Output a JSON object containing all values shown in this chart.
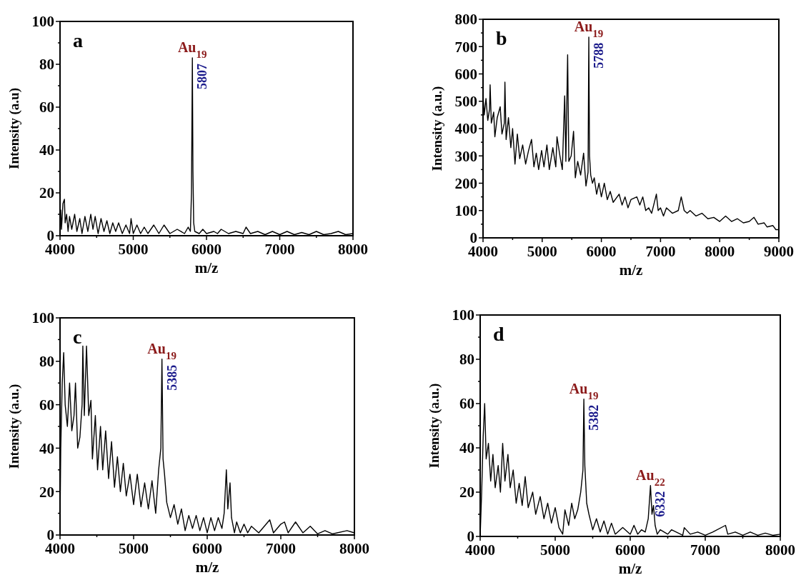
{
  "chart_data": [
    {
      "type": "line",
      "title": "a",
      "xlabel": "m/z",
      "ylabel": "Intensity (a.u)",
      "xlim": [
        4000,
        8000
      ],
      "ylim": [
        0,
        100
      ],
      "xticks": [
        4000,
        {
          "value": 4500,
          "label": null
        },
        5000,
        {
          "value": 5500,
          "label": null
        },
        6000,
        {
          "value": 6500,
          "label": null
        },
        7000,
        {
          "value": 7500,
          "label": null
        },
        8000
      ],
      "yticks": [
        0,
        {
          "value": 10,
          "label": null
        },
        20,
        {
          "value": 30,
          "label": null
        },
        40,
        {
          "value": 50,
          "label": null
        },
        60,
        {
          "value": 70,
          "label": null
        },
        80,
        {
          "value": 90,
          "label": null
        },
        100
      ],
      "grid": false,
      "annotations": [
        {
          "text": "Au$_{19}$",
          "x": 5807,
          "y": 83
        },
        {
          "text": "5807",
          "x": 5807,
          "y": 83
        }
      ],
      "series": [
        {
          "color": "#000000",
          "x": [
            4000,
            4010,
            4020,
            4040,
            4060,
            4070,
            4090,
            4110,
            4130,
            4160,
            4200,
            4230,
            4270,
            4300,
            4340,
            4380,
            4420,
            4450,
            4480,
            4520,
            4560,
            4600,
            4640,
            4680,
            4720,
            4760,
            4800,
            4850,
            4900,
            4950,
            4970,
            5000,
            5050,
            5100,
            5150,
            5200,
            5280,
            5350,
            5420,
            5500,
            5600,
            5700,
            5750,
            5780,
            5795,
            5807,
            5815,
            5825,
            5840,
            5900,
            5950,
            6000,
            6100,
            6150,
            6200,
            6300,
            6400,
            6500,
            6540,
            6600,
            6700,
            6800,
            6900,
            7000,
            7100,
            7200,
            7300,
            7400,
            7500,
            7600,
            7700,
            7800,
            7900,
            8000
          ],
          "values": [
            5,
            12,
            3,
            15,
            17,
            6,
            10,
            2,
            9,
            3,
            10,
            2,
            8,
            1,
            9,
            2,
            10,
            3,
            9,
            1,
            8,
            2,
            7,
            1,
            6,
            2,
            6,
            1,
            5,
            1,
            8,
            1,
            5,
            1,
            4,
            1,
            5,
            1,
            5,
            1,
            3,
            1,
            4,
            2,
            20,
            83,
            30,
            6,
            2,
            1,
            3,
            1,
            2,
            1,
            3,
            1,
            2,
            1,
            4,
            1,
            2,
            0.5,
            2,
            0.5,
            2,
            0.5,
            1.5,
            0.5,
            2,
            0.5,
            1,
            2,
            0.5,
            1
          ]
        }
      ]
    },
    {
      "type": "line",
      "title": "b",
      "xlabel": "m/z",
      "ylabel": "Intensity (a.u.)",
      "xlim": [
        4000,
        9000
      ],
      "ylim": [
        0,
        800
      ],
      "xticks": [
        4000,
        {
          "value": 4500,
          "label": null
        },
        5000,
        {
          "value": 5500,
          "label": null
        },
        6000,
        {
          "value": 6500,
          "label": null
        },
        7000,
        {
          "value": 7500,
          "label": null
        },
        8000,
        {
          "value": 8500,
          "label": null
        },
        9000
      ],
      "yticks": [
        0,
        {
          "value": 50,
          "label": null
        },
        100,
        {
          "value": 150,
          "label": null
        },
        200,
        {
          "value": 250,
          "label": null
        },
        300,
        {
          "value": 350,
          "label": null
        },
        400,
        {
          "value": 450,
          "label": null
        },
        500,
        {
          "value": 550,
          "label": null
        },
        600,
        {
          "value": 650,
          "label": null
        },
        700,
        {
          "value": 750,
          "label": null
        },
        800
      ],
      "grid": false,
      "annotations": [
        {
          "text": "Au$_{19}$",
          "x": 5788,
          "y": 735
        },
        {
          "text": "5788",
          "x": 5788,
          "y": 735
        }
      ],
      "series": [
        {
          "color": "#000000",
          "x": [
            4000,
            4020,
            4050,
            4080,
            4110,
            4120,
            4140,
            4180,
            4200,
            4240,
            4290,
            4320,
            4360,
            4370,
            4390,
            4430,
            4470,
            4500,
            4540,
            4580,
            4620,
            4670,
            4720,
            4770,
            4820,
            4860,
            4900,
            4940,
            4990,
            5030,
            5080,
            5120,
            5180,
            5230,
            5250,
            5300,
            5340,
            5380,
            5400,
            5430,
            5450,
            5490,
            5530,
            5560,
            5600,
            5650,
            5700,
            5740,
            5775,
            5788,
            5800,
            5820,
            5850,
            5880,
            5920,
            5960,
            6000,
            6050,
            6100,
            6150,
            6200,
            6300,
            6350,
            6400,
            6450,
            6500,
            6600,
            6650,
            6700,
            6750,
            6800,
            6850,
            6930,
            6960,
            7000,
            7050,
            7100,
            7200,
            7300,
            7350,
            7400,
            7450,
            7500,
            7600,
            7700,
            7800,
            7900,
            8000,
            8100,
            8200,
            8300,
            8400,
            8500,
            8580,
            8650,
            8750,
            8800,
            8900,
            8950,
            9000
          ],
          "values": [
            520,
            450,
            510,
            430,
            470,
            560,
            420,
            460,
            370,
            440,
            480,
            380,
            420,
            570,
            360,
            440,
            330,
            400,
            270,
            380,
            290,
            340,
            270,
            320,
            360,
            260,
            310,
            250,
            320,
            260,
            340,
            250,
            330,
            260,
            370,
            300,
            250,
            520,
            280,
            670,
            280,
            300,
            390,
            220,
            280,
            230,
            310,
            190,
            240,
            735,
            300,
            230,
            200,
            220,
            160,
            200,
            150,
            200,
            140,
            170,
            130,
            160,
            120,
            150,
            110,
            140,
            150,
            120,
            150,
            100,
            110,
            90,
            160,
            100,
            110,
            80,
            110,
            90,
            100,
            150,
            100,
            90,
            100,
            80,
            90,
            70,
            75,
            60,
            80,
            60,
            70,
            55,
            60,
            75,
            50,
            55,
            40,
            45,
            30,
            30
          ]
        }
      ]
    },
    {
      "type": "line",
      "title": "c",
      "xlabel": "m/z",
      "ylabel": "Intensity (a.u.)",
      "xlim": [
        4000,
        8000
      ],
      "ylim": [
        0,
        100
      ],
      "xticks": [
        4000,
        {
          "value": 4500,
          "label": null
        },
        5000,
        {
          "value": 5500,
          "label": null
        },
        6000,
        {
          "value": 6500,
          "label": null
        },
        7000,
        {
          "value": 7500,
          "label": null
        },
        8000
      ],
      "yticks": [
        0,
        {
          "value": 10,
          "label": null
        },
        20,
        {
          "value": 30,
          "label": null
        },
        40,
        {
          "value": 50,
          "label": null
        },
        60,
        {
          "value": 70,
          "label": null
        },
        80,
        {
          "value": 90,
          "label": null
        },
        100
      ],
      "grid": false,
      "annotations": [
        {
          "text": "Au$_{19}$",
          "x": 5385,
          "y": 81
        },
        {
          "text": "5385",
          "x": 5385,
          "y": 81
        }
      ],
      "series": [
        {
          "color": "#000000",
          "x": [
            4000,
            4010,
            4030,
            4050,
            4070,
            4100,
            4130,
            4160,
            4190,
            4210,
            4240,
            4270,
            4300,
            4310,
            4330,
            4360,
            4390,
            4420,
            4440,
            4480,
            4510,
            4550,
            4580,
            4620,
            4660,
            4700,
            4740,
            4780,
            4820,
            4860,
            4900,
            4950,
            5000,
            5050,
            5100,
            5150,
            5200,
            5250,
            5300,
            5340,
            5370,
            5385,
            5400,
            5420,
            5450,
            5500,
            5550,
            5600,
            5650,
            5700,
            5750,
            5800,
            5850,
            5900,
            5950,
            6000,
            6050,
            6100,
            6150,
            6200,
            6230,
            6260,
            6280,
            6310,
            6330,
            6370,
            6400,
            6450,
            6500,
            6550,
            6600,
            6700,
            6850,
            6900,
            7000,
            7050,
            7100,
            7200,
            7300,
            7400,
            7500,
            7600,
            7700,
            7900,
            8000
          ],
          "values": [
            5,
            40,
            70,
            84,
            60,
            50,
            70,
            48,
            55,
            70,
            40,
            45,
            60,
            87,
            55,
            87,
            55,
            62,
            35,
            55,
            30,
            50,
            30,
            48,
            26,
            43,
            22,
            36,
            20,
            33,
            18,
            28,
            14,
            28,
            13,
            24,
            12,
            25,
            10,
            30,
            40,
            81,
            35,
            28,
            15,
            8,
            14,
            5,
            12,
            2,
            9,
            3,
            9,
            2,
            8,
            1,
            8,
            2,
            8,
            3,
            10,
            30,
            12,
            24,
            8,
            1,
            6,
            1,
            5,
            1,
            4,
            1,
            7,
            1,
            5,
            6,
            1,
            6,
            1,
            4,
            0.5,
            2,
            0.5,
            2,
            1
          ]
        }
      ]
    },
    {
      "type": "line",
      "title": "d",
      "xlabel": "m/z",
      "ylabel": "Intensity (a.u.)",
      "xlim": [
        4000,
        8000
      ],
      "ylim": [
        0,
        100
      ],
      "xticks": [
        4000,
        {
          "value": 4500,
          "label": null
        },
        5000,
        {
          "value": 5500,
          "label": null
        },
        6000,
        {
          "value": 6500,
          "label": null
        },
        7000,
        {
          "value": 7500,
          "label": null
        },
        8000
      ],
      "yticks": [
        0,
        {
          "value": 10,
          "label": null
        },
        20,
        {
          "value": 30,
          "label": null
        },
        40,
        {
          "value": 50,
          "label": null
        },
        60,
        {
          "value": 70,
          "label": null
        },
        80,
        {
          "value": 90,
          "label": null
        },
        100
      ],
      "grid": false,
      "annotations": [
        {
          "text": "Au$_{19}$",
          "x": 5382,
          "y": 62
        },
        {
          "text": "5382",
          "x": 5382,
          "y": 62
        },
        {
          "text": "Au$_{22}$",
          "x": 6270,
          "y": 23
        },
        {
          "text": "6332",
          "x": 6270,
          "y": 23
        }
      ],
      "series": [
        {
          "color": "#000000",
          "x": [
            4000,
            4020,
            4040,
            4060,
            4080,
            4110,
            4140,
            4170,
            4200,
            4240,
            4270,
            4300,
            4330,
            4370,
            4400,
            4440,
            4480,
            4520,
            4560,
            4600,
            4640,
            4700,
            4740,
            4800,
            4850,
            4900,
            4950,
            5000,
            5050,
            5100,
            5130,
            5180,
            5220,
            5260,
            5300,
            5340,
            5370,
            5382,
            5395,
            5420,
            5450,
            5500,
            5550,
            5600,
            5650,
            5700,
            5750,
            5800,
            5900,
            6000,
            6050,
            6100,
            6150,
            6200,
            6240,
            6270,
            6290,
            6310,
            6332,
            6360,
            6400,
            6500,
            6550,
            6700,
            6720,
            6800,
            6900,
            7000,
            7100,
            7270,
            7300,
            7400,
            7500,
            7600,
            7700,
            7800,
            7900,
            8000
          ],
          "values": [
            0,
            20,
            45,
            60,
            35,
            42,
            25,
            37,
            22,
            32,
            20,
            42,
            25,
            37,
            22,
            30,
            15,
            24,
            14,
            27,
            13,
            20,
            10,
            18,
            8,
            15,
            6,
            13,
            4,
            1,
            12,
            5,
            15,
            8,
            12,
            20,
            30,
            62,
            32,
            15,
            10,
            3,
            8,
            2,
            7,
            1,
            6,
            1,
            4,
            1,
            5,
            1,
            3,
            2,
            8,
            23,
            10,
            14,
            5,
            1,
            3,
            1,
            3,
            0.5,
            4,
            1,
            2,
            0.5,
            2,
            5,
            1,
            2,
            0.5,
            2,
            0.5,
            1.5,
            0.5,
            1
          ]
        }
      ]
    }
  ]
}
